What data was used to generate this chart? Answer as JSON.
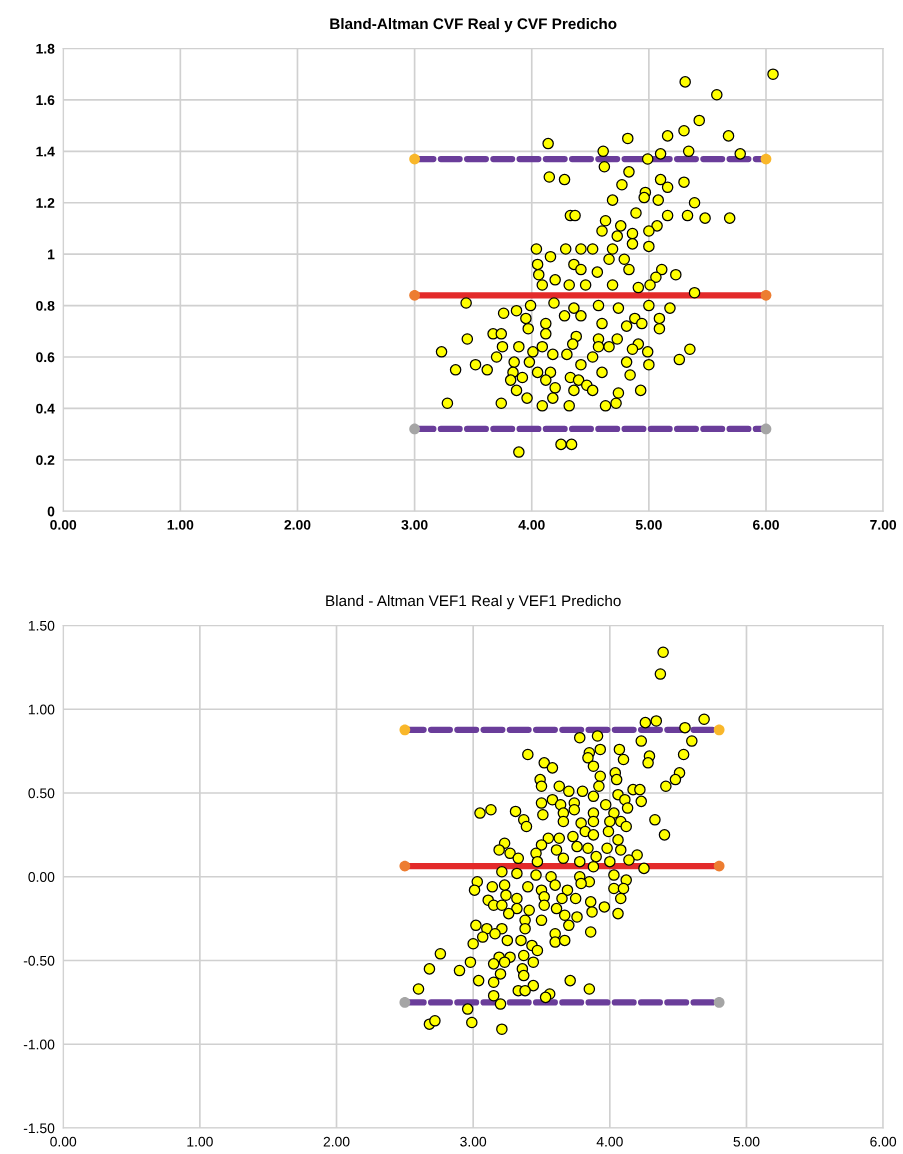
{
  "chart_data": [
    {
      "type": "scatter",
      "title": "Bland-Altman CVF Real y CVF Predicho",
      "grid": true,
      "legend": false,
      "marker": "circle",
      "xlim": [
        0,
        7
      ],
      "xticks": [
        {
          "value": 0,
          "label": "0.00"
        },
        {
          "value": 1,
          "label": "1.00"
        },
        {
          "value": 2,
          "label": "2.00"
        },
        {
          "value": 3,
          "label": "3.00"
        },
        {
          "value": 4,
          "label": "4.00"
        },
        {
          "value": 5,
          "label": "5.00"
        },
        {
          "value": 6,
          "label": "6.00"
        },
        {
          "value": 7,
          "label": "7.00"
        }
      ],
      "ylim": [
        0,
        1.8
      ],
      "yticks": [
        0,
        0.2,
        0.4,
        0.6,
        0.8,
        1,
        1.2,
        1.4,
        1.6,
        1.8
      ],
      "series": [
        {
          "color": "#ffff00",
          "x": [
            6.06,
            5.31,
            5.58,
            5.43,
            5.3,
            5.16,
            5.68,
            4.82,
            4.14,
            5.34,
            4.61,
            5.1,
            5.78,
            4.99,
            4.62,
            4.83,
            4.15,
            4.28,
            5.1,
            5.3,
            4.77,
            5.16,
            4.97,
            4.69,
            5.08,
            5.39,
            4.96,
            4.33,
            4.37,
            4.89,
            5.16,
            5.33,
            5.48,
            5.69,
            4.63,
            4.76,
            4.6,
            5.07,
            5.0,
            4.86,
            4.73,
            4.04,
            4.16,
            4.29,
            4.42,
            4.52,
            4.69,
            4.86,
            5.0,
            4.36,
            4.05,
            4.66,
            4.79,
            5.11,
            5.23,
            4.56,
            4.42,
            4.83,
            4.06,
            4.2,
            4.32,
            4.09,
            4.46,
            4.69,
            4.91,
            5.06,
            5.01,
            5.39,
            3.44,
            3.99,
            4.19,
            4.36,
            4.57,
            4.74,
            5.0,
            5.18,
            3.87,
            3.76,
            3.95,
            4.12,
            4.28,
            4.42,
            4.6,
            4.88,
            4.94,
            5.09,
            5.09,
            4.81,
            3.67,
            3.74,
            3.97,
            4.12,
            4.38,
            4.57,
            4.73,
            3.45,
            3.75,
            3.89,
            4.09,
            4.35,
            4.57,
            4.91,
            4.66,
            3.23,
            3.7,
            4.01,
            4.18,
            4.3,
            4.86,
            4.99,
            5.35,
            3.52,
            3.85,
            3.98,
            4.52,
            4.81,
            5.0,
            5.26,
            3.35,
            3.62,
            3.84,
            4.05,
            4.42,
            4.6,
            4.16,
            4.84,
            3.82,
            3.92,
            4.12,
            4.33,
            4.4,
            4.47,
            3.87,
            4.2,
            4.36,
            4.52,
            4.74,
            4.93,
            3.28,
            3.74,
            3.96,
            4.18,
            4.09,
            4.32,
            4.63,
            4.72,
            4.25,
            4.34,
            3.89
          ],
          "values": [
            1.7,
            1.67,
            1.62,
            1.52,
            1.48,
            1.46,
            1.46,
            1.45,
            1.43,
            1.4,
            1.4,
            1.39,
            1.39,
            1.37,
            1.34,
            1.32,
            1.3,
            1.29,
            1.29,
            1.28,
            1.27,
            1.26,
            1.24,
            1.21,
            1.21,
            1.2,
            1.22,
            1.15,
            1.15,
            1.16,
            1.15,
            1.15,
            1.14,
            1.14,
            1.13,
            1.11,
            1.09,
            1.11,
            1.09,
            1.08,
            1.07,
            1.02,
            0.99,
            1.02,
            1.02,
            1.02,
            1.02,
            1.04,
            1.03,
            0.96,
            0.96,
            0.98,
            0.98,
            0.94,
            0.92,
            0.93,
            0.94,
            0.94,
            0.92,
            0.9,
            0.88,
            0.88,
            0.88,
            0.88,
            0.87,
            0.91,
            0.88,
            0.85,
            0.81,
            0.8,
            0.81,
            0.79,
            0.8,
            0.79,
            0.8,
            0.79,
            0.78,
            0.77,
            0.75,
            0.73,
            0.76,
            0.76,
            0.73,
            0.75,
            0.73,
            0.75,
            0.71,
            0.72,
            0.69,
            0.69,
            0.71,
            0.69,
            0.68,
            0.67,
            0.67,
            0.67,
            0.64,
            0.64,
            0.64,
            0.65,
            0.64,
            0.65,
            0.64,
            0.62,
            0.6,
            0.62,
            0.61,
            0.61,
            0.63,
            0.62,
            0.63,
            0.57,
            0.58,
            0.58,
            0.6,
            0.58,
            0.57,
            0.59,
            0.55,
            0.55,
            0.54,
            0.54,
            0.57,
            0.54,
            0.54,
            0.53,
            0.51,
            0.52,
            0.51,
            0.52,
            0.51,
            0.49,
            0.47,
            0.48,
            0.47,
            0.47,
            0.46,
            0.47,
            0.42,
            0.42,
            0.44,
            0.44,
            0.41,
            0.41,
            0.41,
            0.42,
            0.26,
            0.26,
            0.23
          ]
        },
        {
          "type": "line",
          "color": "#6a3d9a",
          "line_style": "dashed",
          "marker": "none",
          "x": [
            3,
            6
          ],
          "values": [
            1.37,
            1.37
          ]
        },
        {
          "type": "line",
          "color": "#e32a2a",
          "line_style": "solid",
          "marker": "none",
          "x": [
            3,
            6
          ],
          "values": [
            0.84,
            0.84
          ]
        },
        {
          "type": "line",
          "color": "#6a3d9a",
          "line_style": "dashed",
          "marker": "none",
          "x": [
            3,
            6
          ],
          "values": [
            0.32,
            0.32
          ]
        },
        {
          "color": "#f9b72a",
          "x": [
            3,
            6
          ],
          "values": [
            1.37,
            1.37
          ]
        },
        {
          "color": "#ed7d31",
          "x": [
            3,
            6
          ],
          "values": [
            0.84,
            0.84
          ]
        },
        {
          "color": "#a5a5a5",
          "x": [
            3,
            6
          ],
          "values": [
            0.32,
            0.32
          ]
        }
      ]
    },
    {
      "type": "scatter",
      "title": "Bland - Altman VEF1 Real y VEF1 Predicho",
      "grid": true,
      "legend": false,
      "marker": "circle",
      "xlim": [
        0,
        6
      ],
      "xticks": [
        {
          "value": 0,
          "label": "0.00"
        },
        {
          "value": 1,
          "label": "1.00"
        },
        {
          "value": 2,
          "label": "2.00"
        },
        {
          "value": 3,
          "label": "3.00"
        },
        {
          "value": 4,
          "label": "4.00"
        },
        {
          "value": 5,
          "label": "5.00"
        },
        {
          "value": 6,
          "label": "6.00"
        }
      ],
      "ylim": [
        -1.5,
        1.5
      ],
      "yticks": [
        {
          "value": -1.5,
          "label": "-1.50"
        },
        {
          "value": -1,
          "label": "-1.00"
        },
        {
          "value": -0.5,
          "label": "-0.50"
        },
        {
          "value": 0,
          "label": "0.00"
        },
        {
          "value": 0.5,
          "label": "0.50"
        },
        {
          "value": 1,
          "label": "1.00"
        },
        {
          "value": 1.5,
          "label": "1.50"
        }
      ],
      "series": [
        {
          "color": "#ffff00",
          "x": [
            4.39,
            4.37,
            4.69,
            4.26,
            4.34,
            4.55,
            3.78,
            3.91,
            4.6,
            4.23,
            4.07,
            3.85,
            3.93,
            3.4,
            4.29,
            4.54,
            4.1,
            3.84,
            3.52,
            4.28,
            3.88,
            3.58,
            4.04,
            4.51,
            4.48,
            3.49,
            3.93,
            4.05,
            3.5,
            3.63,
            3.7,
            3.8,
            3.92,
            4.17,
            4.22,
            4.41,
            4.06,
            3.88,
            3.58,
            4.11,
            4.23,
            3.5,
            3.64,
            3.74,
            3.97,
            4.13,
            3.05,
            3.13,
            3.31,
            3.51,
            3.66,
            3.74,
            3.88,
            4.03,
            3.37,
            3.39,
            3.66,
            3.79,
            3.88,
            4.0,
            4.08,
            4.33,
            4.12,
            3.99,
            4.4,
            3.82,
            3.55,
            3.63,
            3.73,
            3.88,
            4.06,
            3.5,
            3.76,
            3.84,
            3.98,
            3.23,
            3.19,
            3.27,
            3.33,
            3.46,
            3.61,
            3.66,
            3.9,
            4.08,
            4.2,
            3.47,
            3.78,
            3.88,
            4.0,
            4.14,
            4.25,
            3.21,
            3.32,
            3.46,
            3.57,
            3.78,
            3.85,
            4.03,
            4.12,
            3.03,
            3.01,
            3.14,
            3.23,
            3.4,
            3.5,
            3.6,
            3.69,
            3.79,
            4.03,
            4.1,
            4.08,
            3.11,
            3.24,
            3.32,
            3.52,
            3.65,
            3.75,
            3.86,
            3.15,
            3.21,
            3.32,
            3.41,
            3.52,
            3.61,
            3.96,
            3.26,
            3.38,
            3.5,
            3.67,
            3.76,
            3.87,
            4.06,
            3.02,
            3.1,
            3.21,
            3.38,
            3.7,
            3.86,
            3.07,
            3.16,
            3.25,
            3.35,
            3.6,
            3.6,
            3.67,
            3.0,
            3.43,
            3.47,
            2.76,
            3.19,
            3.27,
            3.37,
            3.15,
            3.23,
            3.44,
            2.68,
            2.98,
            2.9,
            3.36,
            3.2,
            3.37,
            3.04,
            3.15,
            3.44,
            3.71,
            3.33,
            3.38,
            3.85,
            2.6,
            3.56,
            3.53,
            3.15,
            3.2,
            2.96,
            2.68,
            2.72,
            2.99,
            3.21
          ],
          "values": [
            1.34,
            1.21,
            0.94,
            0.92,
            0.93,
            0.89,
            0.83,
            0.84,
            0.81,
            0.81,
            0.76,
            0.74,
            0.76,
            0.73,
            0.72,
            0.73,
            0.7,
            0.71,
            0.68,
            0.68,
            0.66,
            0.65,
            0.62,
            0.62,
            0.58,
            0.58,
            0.6,
            0.58,
            0.54,
            0.54,
            0.51,
            0.51,
            0.54,
            0.52,
            0.52,
            0.54,
            0.49,
            0.48,
            0.46,
            0.46,
            0.45,
            0.44,
            0.43,
            0.44,
            0.43,
            0.41,
            0.38,
            0.4,
            0.39,
            0.37,
            0.38,
            0.4,
            0.38,
            0.38,
            0.34,
            0.3,
            0.33,
            0.32,
            0.33,
            0.33,
            0.33,
            0.34,
            0.3,
            0.27,
            0.25,
            0.27,
            0.23,
            0.23,
            0.24,
            0.25,
            0.22,
            0.19,
            0.18,
            0.17,
            0.17,
            0.2,
            0.16,
            0.14,
            0.11,
            0.14,
            0.16,
            0.11,
            0.12,
            0.16,
            0.13,
            0.09,
            0.09,
            0.06,
            0.09,
            0.1,
            0.05,
            0.03,
            0.02,
            0.01,
            0.0,
            0.0,
            -0.03,
            0.01,
            -0.02,
            -0.03,
            -0.08,
            -0.06,
            -0.05,
            -0.06,
            -0.08,
            -0.05,
            -0.08,
            -0.04,
            -0.07,
            -0.07,
            -0.13,
            -0.14,
            -0.11,
            -0.13,
            -0.12,
            -0.13,
            -0.13,
            -0.15,
            -0.17,
            -0.17,
            -0.19,
            -0.2,
            -0.17,
            -0.19,
            -0.18,
            -0.22,
            -0.26,
            -0.26,
            -0.23,
            -0.24,
            -0.21,
            -0.22,
            -0.29,
            -0.31,
            -0.31,
            -0.31,
            -0.29,
            -0.33,
            -0.36,
            -0.34,
            -0.38,
            -0.38,
            -0.34,
            -0.39,
            -0.38,
            -0.4,
            -0.41,
            -0.44,
            -0.46,
            -0.48,
            -0.48,
            -0.47,
            -0.52,
            -0.51,
            -0.51,
            -0.55,
            -0.51,
            -0.56,
            -0.55,
            -0.58,
            -0.59,
            -0.62,
            -0.63,
            -0.65,
            -0.62,
            -0.68,
            -0.68,
            -0.67,
            -0.67,
            -0.7,
            -0.72,
            -0.71,
            -0.76,
            -0.79,
            -0.88,
            -0.86,
            -0.87,
            -0.91
          ]
        },
        {
          "type": "line",
          "color": "#6a3d9a",
          "line_style": "dashed",
          "marker": "none",
          "x": [
            2.5,
            4.8
          ],
          "values": [
            0.877,
            0.877
          ]
        },
        {
          "type": "line",
          "color": "#e32a2a",
          "line_style": "solid",
          "marker": "none",
          "x": [
            2.5,
            4.8
          ],
          "values": [
            0.064,
            0.064
          ]
        },
        {
          "type": "line",
          "color": "#6a3d9a",
          "line_style": "dashed",
          "marker": "none",
          "x": [
            2.5,
            4.8
          ],
          "values": [
            -0.75,
            -0.75
          ]
        },
        {
          "color": "#f9b72a",
          "x": [
            2.5,
            4.8
          ],
          "values": [
            0.877,
            0.877
          ]
        },
        {
          "color": "#ed7d31",
          "x": [
            2.5,
            4.8
          ],
          "values": [
            0.064,
            0.064
          ]
        },
        {
          "color": "#a5a5a5",
          "x": [
            2.5,
            4.8
          ],
          "values": [
            -0.75,
            -0.75
          ]
        }
      ]
    }
  ]
}
